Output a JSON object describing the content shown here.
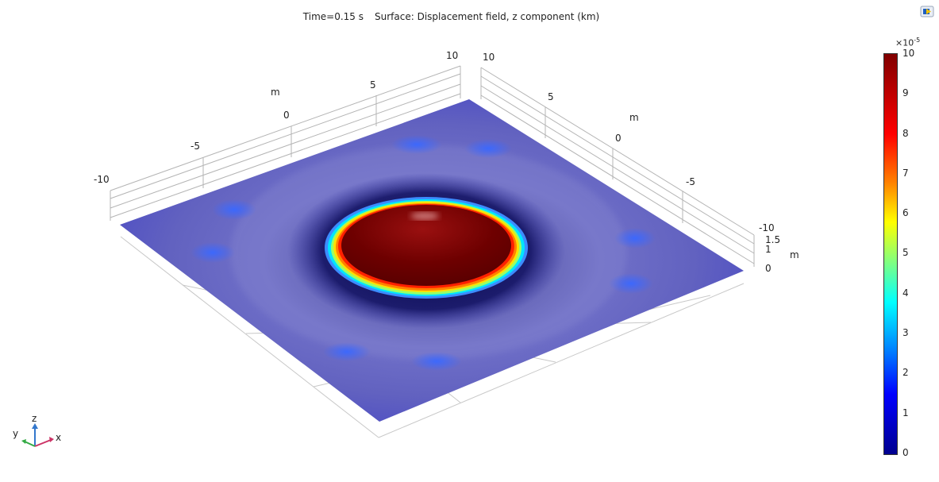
{
  "plot": {
    "time_label": "Time=0.15 s",
    "surface_label": "Surface: Displacement field, z component (km)"
  },
  "axes": {
    "unit": "m",
    "x_ticks": [
      "10",
      "5",
      "0",
      "-5",
      "-10"
    ],
    "y_ticks": [
      "10",
      "5",
      "0",
      "-5",
      "-10"
    ],
    "z_ticks": [
      "1.5",
      "1",
      "0"
    ]
  },
  "colorbar": {
    "exponent_base": "×10",
    "exponent_power": "-5",
    "ticks": [
      "10",
      "9",
      "8",
      "7",
      "6",
      "5",
      "4",
      "3",
      "2",
      "1",
      "0"
    ]
  },
  "triad": {
    "z": "z",
    "y": "y",
    "x": "x"
  },
  "icons": {
    "toolbar": "image-export-icon"
  }
}
